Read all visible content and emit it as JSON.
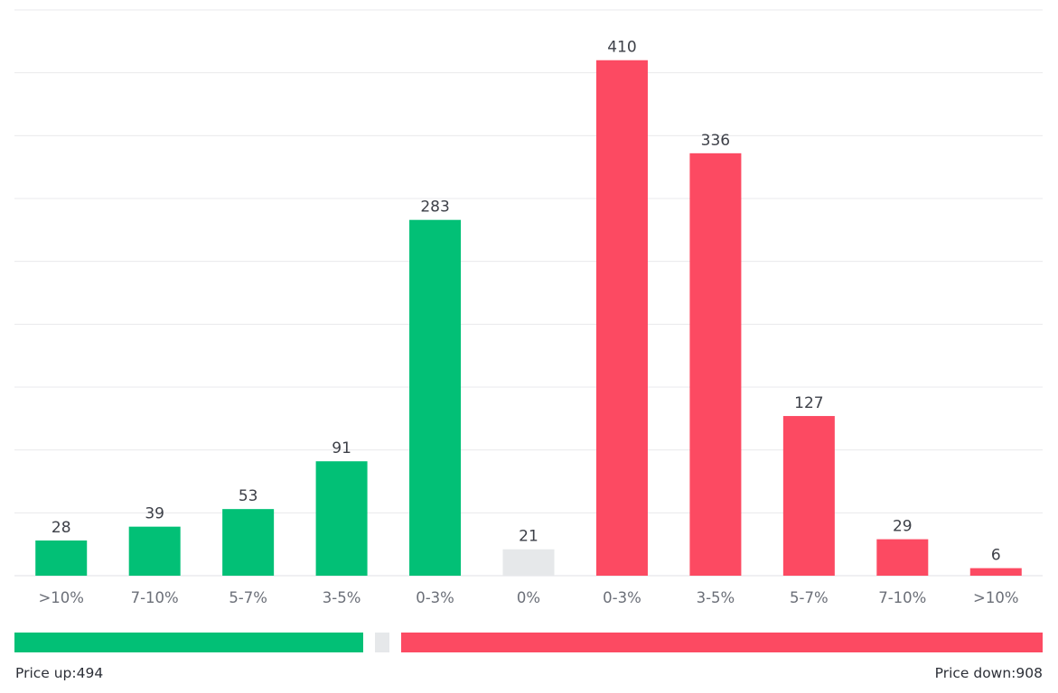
{
  "colors": {
    "up": "#02c076",
    "flat": "#e6e8ea",
    "down": "#fc4a62"
  },
  "chart_data": {
    "type": "bar",
    "categories": [
      ">10%",
      "7-10%",
      "5-7%",
      "3-5%",
      "0-3%",
      "0%",
      "0-3%",
      "3-5%",
      "5-7%",
      "7-10%",
      ">10%"
    ],
    "values": [
      28,
      39,
      53,
      91,
      283,
      21,
      410,
      336,
      127,
      29,
      6
    ],
    "bar_groups": [
      "up",
      "up",
      "up",
      "up",
      "up",
      "flat",
      "down",
      "down",
      "down",
      "down",
      "down"
    ],
    "ylim": [
      0,
      450
    ],
    "grid": true,
    "title": "",
    "xlabel": "",
    "ylabel": ""
  },
  "summary": {
    "up_label": "Price up:494",
    "down_label": "Price down:908",
    "up_count": 494,
    "flat_count": 21,
    "down_count": 908
  }
}
